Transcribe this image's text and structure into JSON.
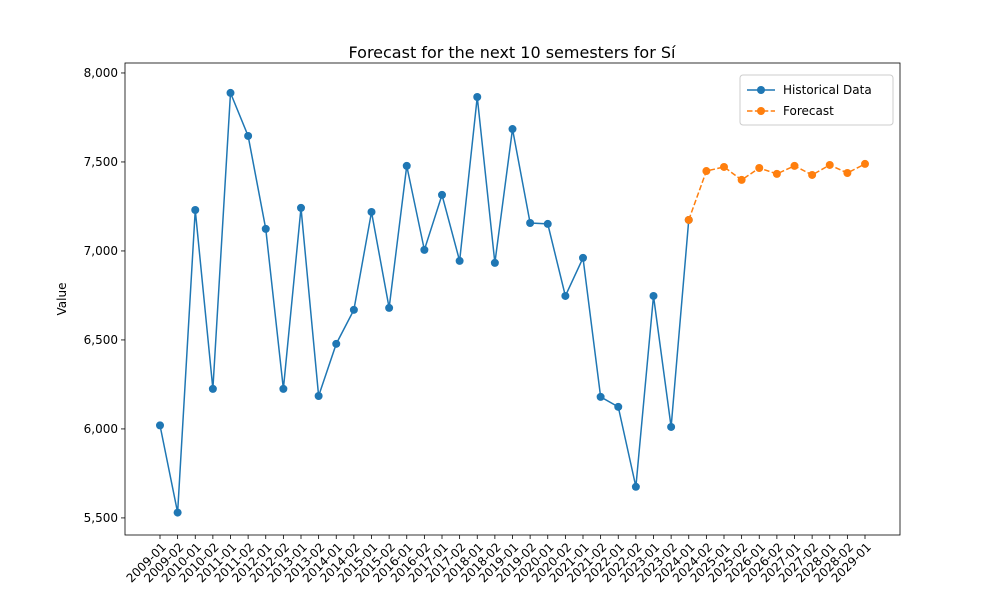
{
  "chart_data": {
    "type": "line",
    "title": "Forecast for the next 10 semesters for Sí",
    "ylabel": "Value",
    "categories": [
      "2009-01",
      "2009-02",
      "2010-01",
      "2010-02",
      "2011-01",
      "2011-02",
      "2012-01",
      "2012-02",
      "2013-01",
      "2013-02",
      "2014-01",
      "2014-02",
      "2015-01",
      "2015-02",
      "2016-01",
      "2016-02",
      "2017-01",
      "2017-02",
      "2018-01",
      "2018-02",
      "2019-01",
      "2019-02",
      "2020-01",
      "2020-02",
      "2021-01",
      "2021-02",
      "2022-01",
      "2022-02",
      "2023-01",
      "2023-02",
      "2024-01",
      "2024-02",
      "2025-01",
      "2025-02",
      "2026-01",
      "2026-02",
      "2027-01",
      "2027-02",
      "2028-01",
      "2028-02",
      "2029-01"
    ],
    "series": [
      {
        "name": "Historical Data",
        "color": "#1f77b4",
        "dashed": false,
        "values": [
          6020,
          5530,
          7230,
          6225,
          7888,
          7646,
          7124,
          6225,
          7242,
          6185,
          6478,
          6669,
          7219,
          6680,
          7478,
          7006,
          7315,
          6944,
          7865,
          6933,
          7685,
          7157,
          7152,
          6747,
          6961,
          6180,
          6124,
          5675,
          6747,
          6011,
          7174,
          null,
          null,
          null,
          null,
          null,
          null,
          null,
          null,
          null,
          null
        ]
      },
      {
        "name": "Forecast",
        "color": "#ff7f0e",
        "dashed": true,
        "values": [
          null,
          null,
          null,
          null,
          null,
          null,
          null,
          null,
          null,
          null,
          null,
          null,
          null,
          null,
          null,
          null,
          null,
          null,
          null,
          null,
          null,
          null,
          null,
          null,
          null,
          null,
          null,
          null,
          null,
          null,
          7174,
          7449,
          7472,
          7399,
          7466,
          7433,
          7478,
          7427,
          7483,
          7438,
          7489
        ]
      }
    ],
    "ylim": [
      5404,
      8056
    ],
    "yticks": [
      {
        "value": 5500,
        "label": "5,500"
      },
      {
        "value": 6000,
        "label": "6,000"
      },
      {
        "value": 6500,
        "label": "6,500"
      },
      {
        "value": 7000,
        "label": "7,000"
      },
      {
        "value": 7500,
        "label": "7,500"
      },
      {
        "value": 8000,
        "label": "8,000"
      }
    ],
    "legend": "upper right"
  }
}
